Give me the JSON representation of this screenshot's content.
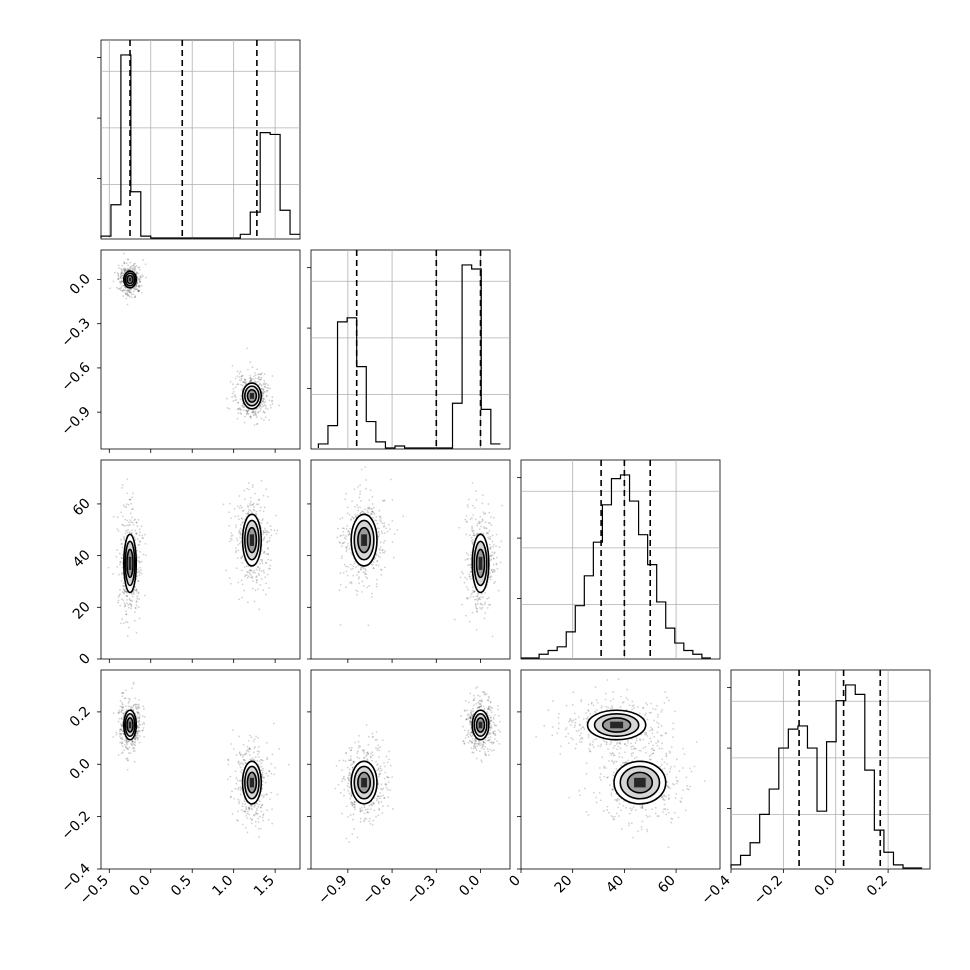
{
  "chart_data": {
    "type": "corner",
    "n_params": 4,
    "axes": {
      "p0": {
        "range": [
          -0.6,
          1.8
        ],
        "ticks": [
          -0.5,
          0.0,
          0.5,
          1.0,
          1.5
        ],
        "tick_labels": [
          "−0.5",
          "0.0",
          "0.5",
          "1.0",
          "1.5"
        ]
      },
      "p1": {
        "range": [
          -1.15,
          0.2
        ],
        "ticks": [
          -0.9,
          -0.6,
          -0.3,
          0.0
        ],
        "tick_labels": [
          "−0.9",
          "−0.6",
          "−0.3",
          "0.0"
        ]
      },
      "p2": {
        "range": [
          0,
          77
        ],
        "ticks": [
          0,
          20,
          40,
          60
        ],
        "tick_labels": [
          "0",
          "20",
          "40",
          "60"
        ]
      },
      "p3": {
        "range": [
          -0.4,
          0.36
        ],
        "ticks": [
          -0.4,
          -0.2,
          0.0,
          0.2
        ],
        "tick_labels": [
          "−0.4",
          "−0.2",
          "0.0",
          "0.2"
        ]
      }
    },
    "quantiles": {
      "p0": [
        -0.25,
        0.38,
        1.28
      ],
      "p1": [
        -0.84,
        -0.3,
        0.0
      ],
      "p2": [
        31,
        40,
        50
      ],
      "p3": [
        -0.14,
        0.03,
        0.17
      ]
    },
    "histograms": {
      "p0": {
        "edges_start": -0.6,
        "bin_width": 0.12,
        "counts": [
          1,
          18,
          99,
          25,
          1,
          0,
          0,
          0,
          0,
          0,
          0,
          0,
          0,
          0,
          2,
          14,
          57,
          56,
          15,
          2
        ]
      },
      "p1": {
        "edges_start": -1.1,
        "bin_width": 0.065,
        "counts": [
          2,
          11,
          62,
          64,
          40,
          13,
          3,
          0,
          1,
          0,
          0,
          0,
          0,
          0,
          22,
          90,
          88,
          19,
          2
        ]
      },
      "p2": {
        "edges_start": 0,
        "bin_width": 3.5,
        "counts": [
          0,
          0,
          1,
          2,
          3,
          7,
          14,
          22,
          31,
          41,
          48,
          49,
          42,
          33,
          25,
          15,
          8,
          4,
          2,
          1,
          0
        ]
      },
      "p3": {
        "edges_start": -0.4,
        "bin_width": 0.0365,
        "counts": [
          1,
          4,
          8,
          17,
          25,
          38,
          44,
          45,
          38,
          18,
          40,
          53,
          58,
          55,
          31,
          12,
          5,
          1,
          0,
          0
        ]
      }
    },
    "clusters": [
      {
        "mean": [
          -0.25,
          0.0,
          37,
          0.15
        ],
        "sd": [
          0.06,
          0.045,
          9,
          0.045
        ]
      },
      {
        "mean": [
          1.22,
          -0.79,
          46,
          -0.07
        ],
        "sd": [
          0.09,
          0.07,
          8,
          0.065
        ]
      }
    ]
  }
}
